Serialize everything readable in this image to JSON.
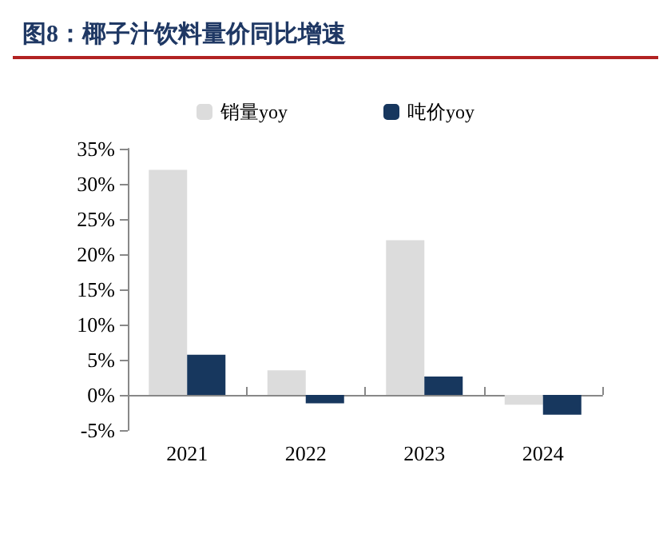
{
  "chart_data": {
    "type": "bar",
    "title": "图8：椰子汁饮料量价同比增速",
    "categories": [
      "2021",
      "2022",
      "2023",
      "2024"
    ],
    "series": [
      {
        "name": "销量yoy",
        "color": "#dcdcdc",
        "values": [
          32,
          3.5,
          22,
          -1.4
        ]
      },
      {
        "name": "吨价yoy",
        "color": "#17375e",
        "values": [
          5.7,
          -1.2,
          2.6,
          -2.8
        ]
      }
    ],
    "ylim": [
      -5,
      35
    ],
    "yticks": [
      {
        "value": -5,
        "label": "-5%"
      },
      {
        "value": 0,
        "label": "0%"
      },
      {
        "value": 5,
        "label": "5%"
      },
      {
        "value": 10,
        "label": "10%"
      },
      {
        "value": 15,
        "label": "15%"
      },
      {
        "value": 20,
        "label": "20%"
      },
      {
        "value": 25,
        "label": "25%"
      },
      {
        "value": 30,
        "label": "30%"
      },
      {
        "value": 35,
        "label": "35%"
      }
    ],
    "grid": false,
    "legend": "top"
  }
}
